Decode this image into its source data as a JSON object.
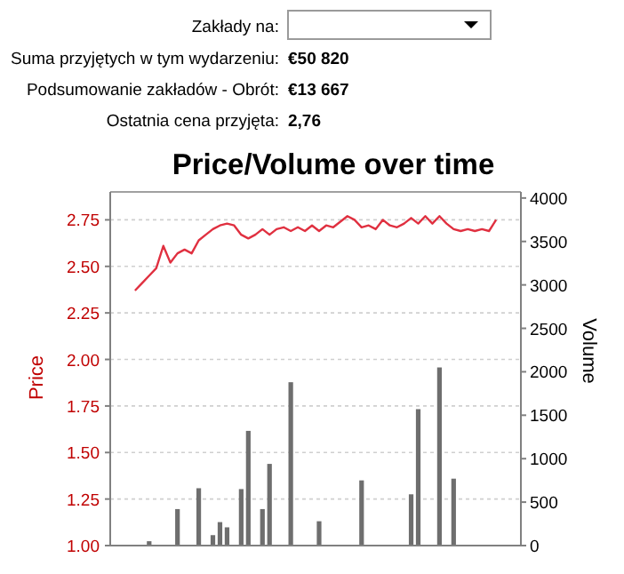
{
  "chart_data": {
    "type": "line",
    "title": "Price/Volume over time",
    "ylabel": "Price",
    "y2label": "Volume",
    "annotations": [
      "Zakłady na:",
      "Suma przyjętych w tym wydarzeniu:",
      "€50 820",
      "Podsumowanie zakładów - Obrót:",
      "€13 667",
      "Ostatnia cena przyjęta:",
      "2,76"
    ],
    "categories": [
      null,
      null,
      null,
      null,
      null,
      null,
      null,
      null,
      null,
      null,
      null,
      null,
      null,
      null,
      null,
      null,
      null,
      null,
      null,
      null,
      null,
      null,
      null,
      null,
      null,
      null,
      null,
      null,
      null,
      null,
      null,
      null,
      null,
      null,
      null,
      null,
      null,
      null,
      null,
      null,
      null,
      null,
      null,
      null,
      null,
      null,
      null,
      null,
      null,
      null,
      null,
      null,
      null,
      null,
      null,
      null,
      null,
      null
    ],
    "series": [
      {
        "type": "bar",
        "axis": "y2",
        "color": "#6e6e6e",
        "values": [
          null,
          null,
          null,
          null,
          null,
          50,
          null,
          null,
          null,
          420,
          null,
          null,
          660,
          null,
          120,
          270,
          210,
          null,
          650,
          1320,
          null,
          420,
          940,
          null,
          null,
          1880,
          null,
          null,
          null,
          280,
          null,
          null,
          null,
          null,
          null,
          750,
          null,
          null,
          null,
          null,
          null,
          null,
          590,
          1570,
          null,
          null,
          2050,
          null,
          770,
          null,
          null,
          null,
          null,
          null,
          null,
          null,
          null,
          null
        ]
      },
      {
        "color": "#e03040",
        "values": [
          null,
          null,
          null,
          2.37,
          2.41,
          2.45,
          2.49,
          2.61,
          2.52,
          2.57,
          2.59,
          2.57,
          2.64,
          2.67,
          2.7,
          2.72,
          2.73,
          2.72,
          2.67,
          2.65,
          2.67,
          2.7,
          2.67,
          2.7,
          2.71,
          2.69,
          2.71,
          2.69,
          2.72,
          2.69,
          2.72,
          2.71,
          2.74,
          2.77,
          2.75,
          2.71,
          2.72,
          2.7,
          2.75,
          2.72,
          2.71,
          2.73,
          2.76,
          2.73,
          2.77,
          2.73,
          2.77,
          2.73,
          2.7,
          2.69,
          2.7,
          2.69,
          2.7,
          2.69,
          2.75,
          null,
          null,
          null
        ]
      }
    ],
    "ylim": [
      1,
      2.9
    ],
    "yticks": [
      {
        "value": 1,
        "label": "1.00"
      },
      1.25,
      {
        "value": 1.5,
        "label": "1.50"
      },
      1.75,
      {
        "value": 2,
        "label": "2.00"
      },
      2.25,
      {
        "value": 2.5,
        "label": "2.50"
      },
      2.75
    ],
    "y2lim": [
      0,
      4070
    ],
    "y2ticks": [
      0,
      500,
      1000,
      1500,
      2000,
      2500,
      3000,
      3500,
      4000
    ],
    "grid": "y",
    "tick_labels": "y"
  }
}
